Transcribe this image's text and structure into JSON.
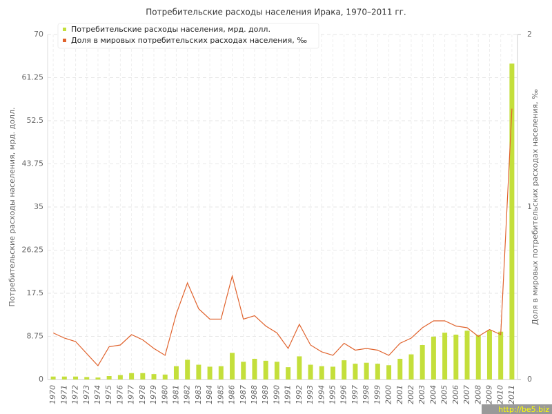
{
  "chart_data": {
    "type": "bar-line",
    "title": "Потребительские расходы населения Ирака, 1970–2011 гг.",
    "y_label": "Потребительские расходы населения, мрд. долл.",
    "y2_label": "Доля в мировых потребительских расходах населения, ‰",
    "categories": [
      "1970",
      "1971",
      "1972",
      "1973",
      "1974",
      "1975",
      "1976",
      "1977",
      "1978",
      "1979",
      "1980",
      "1981",
      "1982",
      "1983",
      "1984",
      "1985",
      "1986",
      "1987",
      "1988",
      "1989",
      "1990",
      "1991",
      "1992",
      "1993",
      "1994",
      "1995",
      "1996",
      "1997",
      "1998",
      "1999",
      "2000",
      "2001",
      "2002",
      "2003",
      "2004",
      "2005",
      "2006",
      "2007",
      "2008",
      "2009",
      "2010",
      "2011"
    ],
    "series": [
      {
        "name": "Потребительские расходы населения, мрд. долл.",
        "color": "#c4df3b",
        "kind": "bar",
        "values": [
          0.6,
          0.6,
          0.6,
          0.5,
          0.4,
          0.7,
          0.9,
          1.3,
          1.3,
          1.1,
          1.0,
          2.7,
          4.0,
          3.0,
          2.6,
          2.7,
          5.4,
          3.6,
          4.2,
          3.8,
          3.6,
          2.5,
          4.7,
          3.0,
          2.7,
          2.6,
          3.9,
          3.2,
          3.4,
          3.2,
          2.9,
          4.2,
          5.1,
          7.0,
          8.7,
          9.5,
          9.1,
          9.9,
          9.0,
          10.0,
          9.7,
          64.1
        ]
      },
      {
        "name": "Доля в мировых потребительских расходах населения, ‰",
        "color": "#e0622c",
        "kind": "line",
        "axis": "y2",
        "values": [
          0.27,
          0.24,
          0.22,
          0.15,
          0.08,
          0.19,
          0.2,
          0.26,
          0.23,
          0.18,
          0.14,
          0.38,
          0.56,
          0.41,
          0.35,
          0.35,
          0.6,
          0.35,
          0.37,
          0.31,
          0.27,
          0.18,
          0.32,
          0.2,
          0.16,
          0.14,
          0.21,
          0.17,
          0.18,
          0.17,
          0.14,
          0.21,
          0.24,
          0.3,
          0.34,
          0.34,
          0.31,
          0.3,
          0.25,
          0.29,
          0.26,
          1.57
        ]
      }
    ],
    "ylim": [
      0,
      70
    ],
    "yticks": [
      0,
      8.75,
      17.5,
      26.25,
      35,
      43.75,
      52.5,
      61.25,
      70
    ],
    "y2lim": [
      0,
      2
    ],
    "y2ticks": [
      0,
      1,
      2
    ],
    "grid": true,
    "legend": "top-left",
    "watermark": "http://be5.biz"
  }
}
